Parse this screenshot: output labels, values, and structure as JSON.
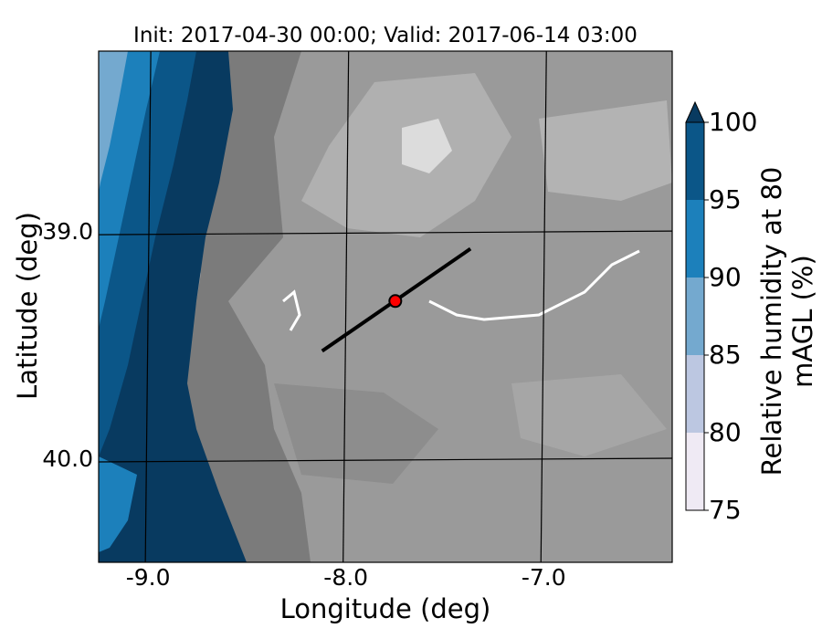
{
  "title": "Init: 2017-04-30 00:00; Valid: 2017-06-14 03:00",
  "xlabel": "Longitude (deg)",
  "ylabel": "Latitude (deg)",
  "colorbar": {
    "label": "Relative humidity at 80 mAGL (%)",
    "ticks": [
      "75",
      "80",
      "85",
      "90",
      "95",
      "100"
    ],
    "colors": [
      "#efeaf4",
      "#bcc7e1",
      "#74a9cf",
      "#1c80bb",
      "#0b5688",
      "#083a60"
    ],
    "extend": "max"
  },
  "x_ticks": [
    "-9.0",
    "-8.0",
    "-7.0"
  ],
  "y_ticks": [
    "40.0",
    "39.0"
  ],
  "map_data": {
    "extent_lon": [
      -9.25,
      -6.35
    ],
    "extent_lat": [
      38.55,
      40.8
    ],
    "graticule_lon": [
      -9.0,
      -8.0,
      -7.0
    ],
    "graticule_lat": [
      39.0,
      40.0
    ],
    "transect": {
      "start": [
        -8.12,
        39.48
      ],
      "end": [
        -7.37,
        39.93
      ]
    },
    "site_marker": {
      "lon": -7.75,
      "lat": 39.7,
      "color": "#ff0000"
    },
    "land_colors": [
      "#5e5e5e",
      "#7a7a7a",
      "#8c8c8c",
      "#9b9b9b",
      "#ababab",
      "#c4c4c4",
      "#e0e0e0"
    ]
  }
}
